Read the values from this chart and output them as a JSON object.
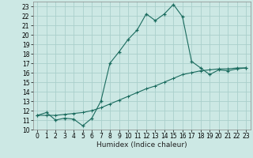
{
  "xlabel": "Humidex (Indice chaleur)",
  "bg_color": "#cce8e4",
  "grid_color": "#aacfcb",
  "line_color": "#1a6b5e",
  "xlim": [
    -0.5,
    23.5
  ],
  "ylim": [
    10,
    23.5
  ],
  "x_ticks": [
    0,
    1,
    2,
    3,
    4,
    5,
    6,
    7,
    8,
    9,
    10,
    11,
    12,
    13,
    14,
    15,
    16,
    17,
    18,
    19,
    20,
    21,
    22,
    23
  ],
  "y_ticks": [
    10,
    11,
    12,
    13,
    14,
    15,
    16,
    17,
    18,
    19,
    20,
    21,
    22,
    23
  ],
  "line1_x": [
    0,
    1,
    2,
    3,
    4,
    5,
    6,
    7,
    8,
    9,
    10,
    11,
    12,
    13,
    14,
    15,
    16,
    17,
    18,
    19,
    20,
    21,
    22,
    23
  ],
  "line1_y": [
    11.5,
    11.8,
    11.0,
    11.2,
    11.1,
    10.4,
    11.2,
    13.0,
    17.0,
    18.2,
    19.5,
    20.5,
    22.2,
    21.5,
    22.2,
    23.2,
    21.9,
    17.2,
    16.5,
    15.8,
    16.3,
    16.2,
    16.4,
    16.5
  ],
  "line2_x": [
    0,
    1,
    2,
    3,
    4,
    5,
    6,
    7,
    8,
    9,
    10,
    11,
    12,
    13,
    14,
    15,
    16,
    17,
    18,
    19,
    20,
    21,
    22,
    23
  ],
  "line2_y": [
    11.5,
    11.5,
    11.5,
    11.6,
    11.7,
    11.8,
    12.0,
    12.3,
    12.7,
    13.1,
    13.5,
    13.9,
    14.3,
    14.6,
    15.0,
    15.4,
    15.8,
    16.0,
    16.2,
    16.3,
    16.4,
    16.4,
    16.5,
    16.5
  ],
  "tick_fontsize": 5.5,
  "xlabel_fontsize": 6.5
}
